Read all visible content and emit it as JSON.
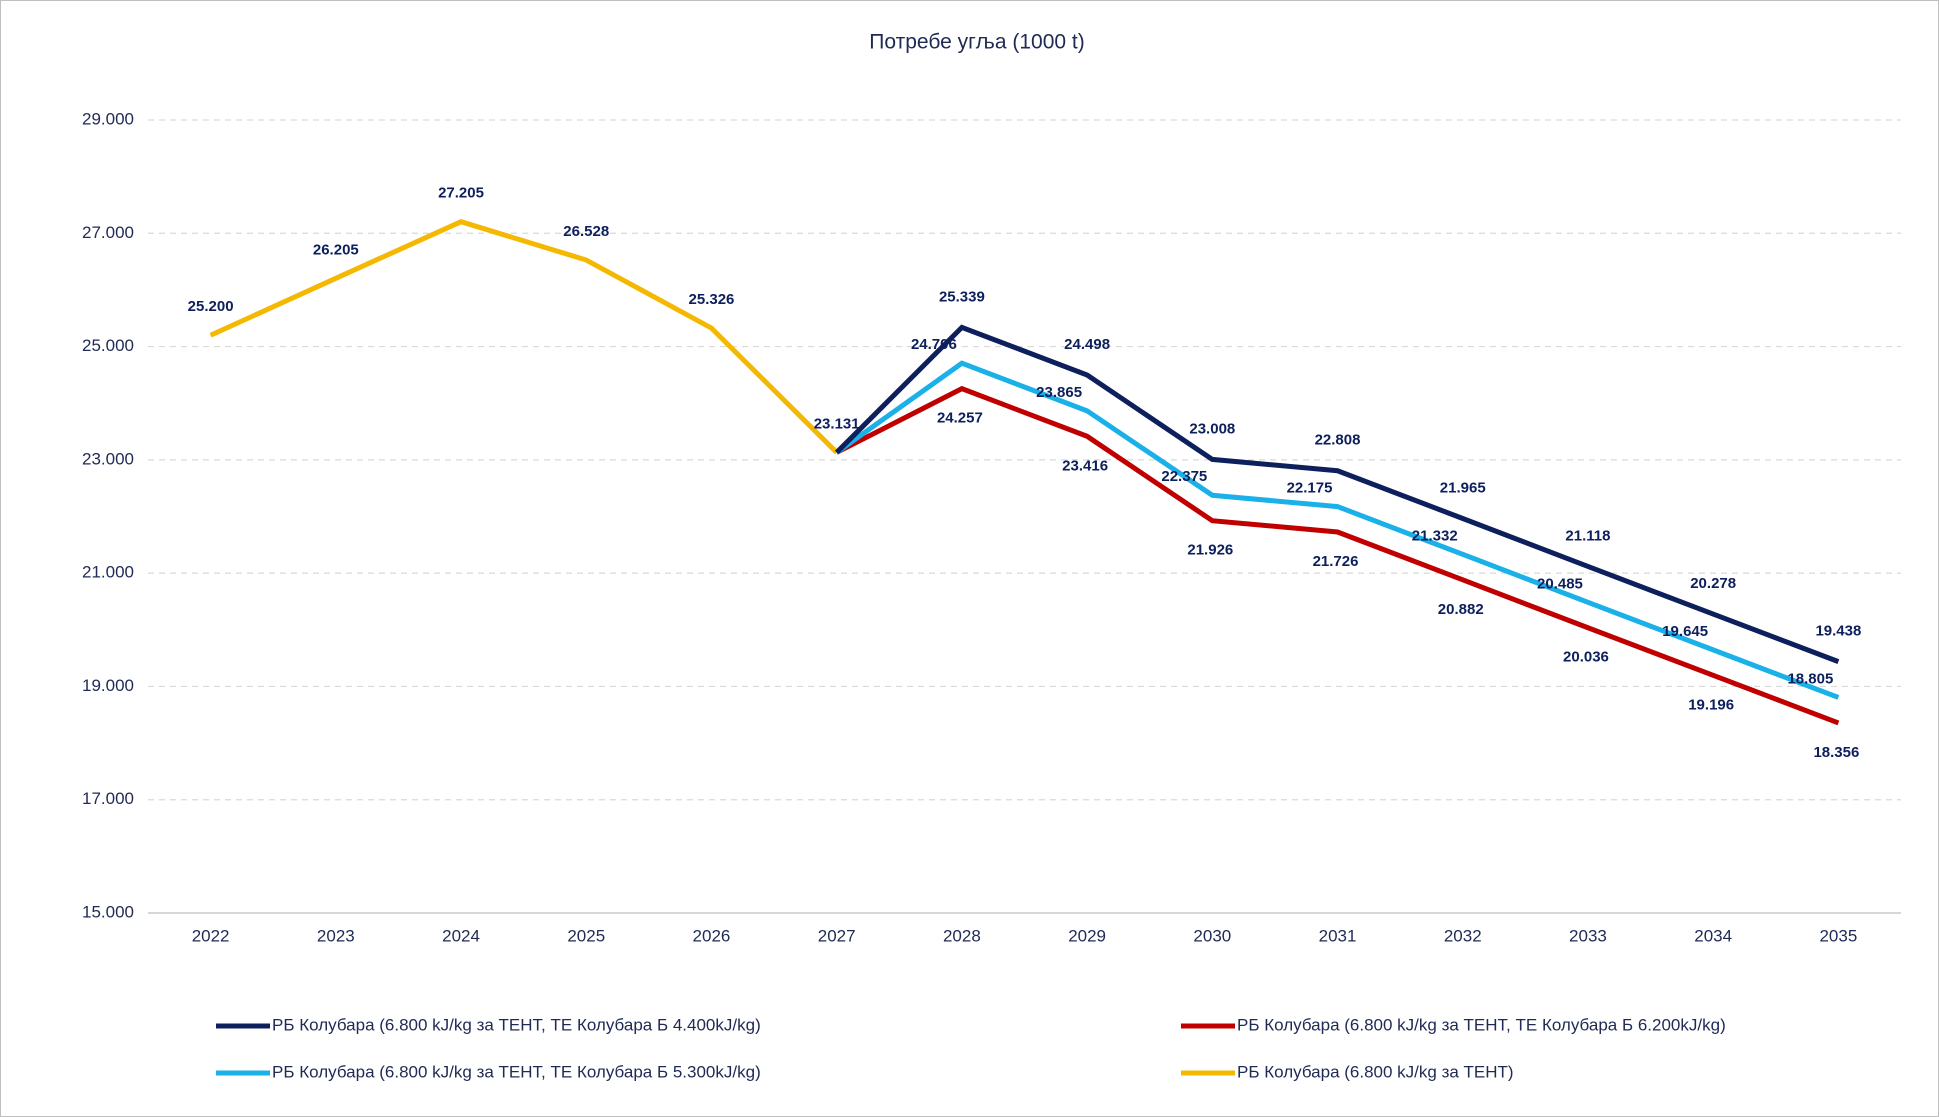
{
  "chart_data": {
    "type": "line",
    "title": "Потребе угља (1000 t)",
    "categories": [
      "2022",
      "2023",
      "2024",
      "2025",
      "2026",
      "2027",
      "2028",
      "2029",
      "2030",
      "2031",
      "2032",
      "2033",
      "2034",
      "2035"
    ],
    "ylim": [
      15000,
      29000
    ],
    "yticks": [
      {
        "value": 15000,
        "label": "15.000"
      },
      {
        "value": 17000,
        "label": "17.000"
      },
      {
        "value": 19000,
        "label": "19.000"
      },
      {
        "value": 21000,
        "label": "21.000"
      },
      {
        "value": 23000,
        "label": "23.000"
      },
      {
        "value": 25000,
        "label": "25.000"
      },
      {
        "value": 27000,
        "label": "27.000"
      },
      {
        "value": 29000,
        "label": "29.000"
      }
    ],
    "grid": true,
    "legend": "bottom",
    "series": [
      {
        "name": "РБ Колубара (6.800 kJ/kg за ТЕНТ, ТЕ Колубара Б 4.400kJ/kg)",
        "color": "#0d1f5c",
        "values": [
          null,
          null,
          null,
          null,
          null,
          23131,
          25339,
          24498,
          23008,
          22808,
          21965,
          21118,
          20278,
          19438
        ],
        "value_labels": [
          null,
          null,
          null,
          null,
          null,
          null,
          "25.339",
          "24.498",
          "23.008",
          "22.808",
          "21.965",
          "21.118",
          "20.278",
          "19.438"
        ]
      },
      {
        "name": "РБ Колубара (6.800 kJ/kg за ТЕНТ, ТЕ Колубара Б 6.200kJ/kg)",
        "color": "#c00000",
        "values": [
          null,
          null,
          null,
          null,
          null,
          23131,
          24257,
          23416,
          21926,
          21726,
          20882,
          20036,
          19196,
          18356
        ],
        "value_labels": [
          null,
          null,
          null,
          null,
          null,
          null,
          "24.257",
          "23.416",
          "21.926",
          "21.726",
          "20.882",
          "20.036",
          "19.196",
          "18.356"
        ]
      },
      {
        "name": "РБ Колубара (6.800 kJ/kg за ТЕНТ, ТЕ Колубара Б 5.300kJ/kg)",
        "color": "#1ab0e8",
        "values": [
          null,
          null,
          null,
          null,
          null,
          23131,
          24706,
          23865,
          22375,
          22175,
          21332,
          20485,
          19645,
          18805
        ],
        "value_labels": [
          null,
          null,
          null,
          null,
          null,
          null,
          "24.706",
          "23.865",
          "22.375",
          "22.175",
          "21.332",
          "20.485",
          "19.645",
          "18.805"
        ]
      },
      {
        "name": "РБ Колубара (6.800 kJ/kg за ТЕНТ)",
        "color": "#f5b800",
        "values": [
          25200,
          26205,
          27205,
          26528,
          25326,
          23131,
          null,
          null,
          null,
          null,
          null,
          null,
          null,
          null
        ],
        "value_labels": [
          "25.200",
          "26.205",
          "27.205",
          "26.528",
          "25.326",
          "23.131",
          null,
          null,
          null,
          null,
          null,
          null,
          null,
          null
        ]
      }
    ]
  }
}
